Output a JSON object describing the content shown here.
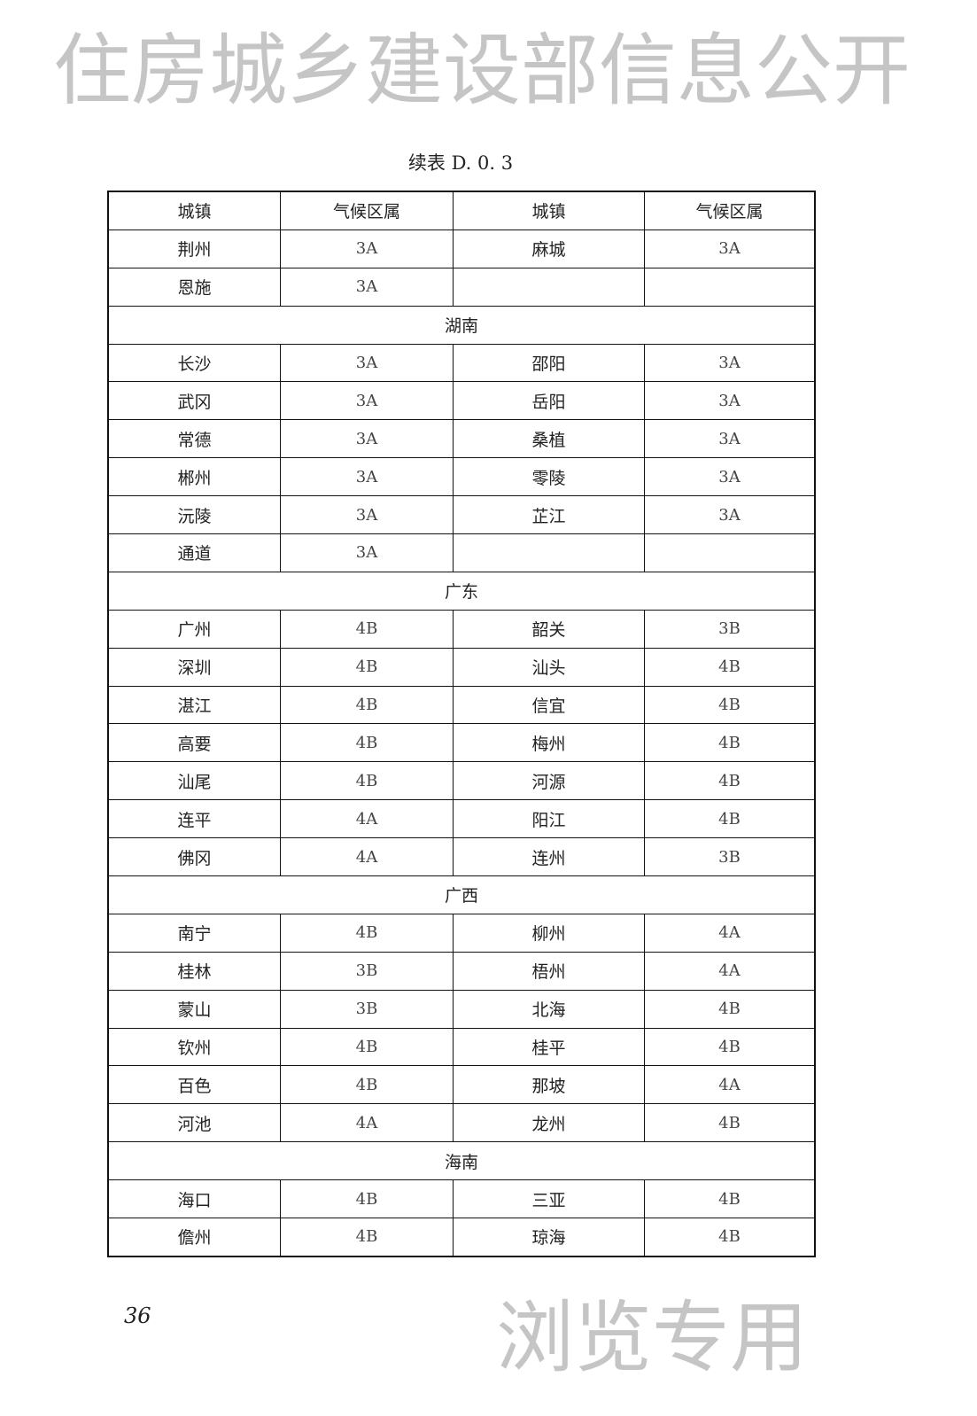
{
  "caption": "续表 D. 0. 3",
  "headers": [
    "城镇",
    "气候区属",
    "城镇",
    "气候区属"
  ],
  "rows": [
    {
      "cells": [
        "荆州",
        "3A",
        "麻城",
        "3A"
      ]
    },
    {
      "cells": [
        "恩施",
        "3A",
        "",
        ""
      ]
    },
    {
      "region": "湖南"
    },
    {
      "cells": [
        "长沙",
        "3A",
        "邵阳",
        "3A"
      ]
    },
    {
      "cells": [
        "武冈",
        "3A",
        "岳阳",
        "3A"
      ]
    },
    {
      "cells": [
        "常德",
        "3A",
        "桑植",
        "3A"
      ]
    },
    {
      "cells": [
        "郴州",
        "3A",
        "零陵",
        "3A"
      ]
    },
    {
      "cells": [
        "沅陵",
        "3A",
        "芷江",
        "3A"
      ]
    },
    {
      "cells": [
        "通道",
        "3A",
        "",
        ""
      ]
    },
    {
      "region": "广东"
    },
    {
      "cells": [
        "广州",
        "4B",
        "韶关",
        "3B"
      ]
    },
    {
      "cells": [
        "深圳",
        "4B",
        "汕头",
        "4B"
      ]
    },
    {
      "cells": [
        "湛江",
        "4B",
        "信宜",
        "4B"
      ]
    },
    {
      "cells": [
        "高要",
        "4B",
        "梅州",
        "4B"
      ]
    },
    {
      "cells": [
        "汕尾",
        "4B",
        "河源",
        "4B"
      ]
    },
    {
      "cells": [
        "连平",
        "4A",
        "阳江",
        "4B"
      ]
    },
    {
      "cells": [
        "佛冈",
        "4A",
        "连州",
        "3B"
      ]
    },
    {
      "region": "广西"
    },
    {
      "cells": [
        "南宁",
        "4B",
        "柳州",
        "4A"
      ]
    },
    {
      "cells": [
        "桂林",
        "3B",
        "梧州",
        "4A"
      ]
    },
    {
      "cells": [
        "蒙山",
        "3B",
        "北海",
        "4B"
      ]
    },
    {
      "cells": [
        "钦州",
        "4B",
        "桂平",
        "4B"
      ]
    },
    {
      "cells": [
        "百色",
        "4B",
        "那坡",
        "4A"
      ]
    },
    {
      "cells": [
        "河池",
        "4A",
        "龙州",
        "4B"
      ]
    },
    {
      "region": "海南"
    },
    {
      "cells": [
        "海口",
        "4B",
        "三亚",
        "4B"
      ]
    },
    {
      "cells": [
        "儋州",
        "4B",
        "琼海",
        "4B"
      ]
    }
  ],
  "page_number": "36",
  "watermark": {
    "line1": "住房城乡建设部信息公开",
    "line2": "浏览专用"
  }
}
